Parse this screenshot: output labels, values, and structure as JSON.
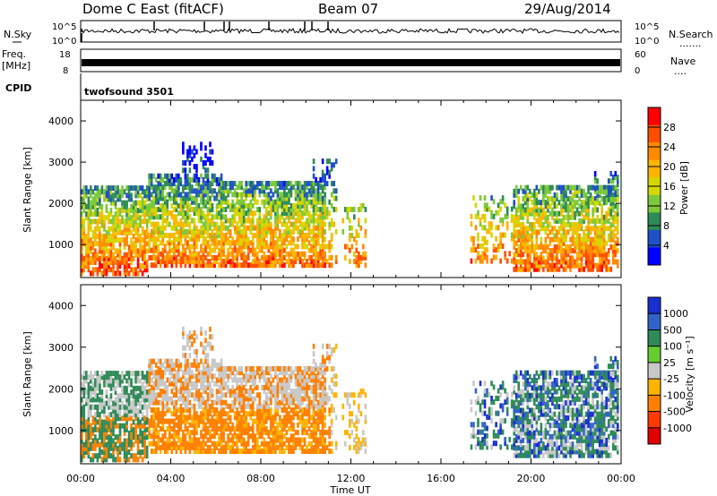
{
  "header": {
    "station": "Dome C East (fitACF)",
    "beam": "Beam 07",
    "date": "29/Aug/2014"
  },
  "noise_panel": {
    "left_label": "N.Sky",
    "right_label": "N.Search",
    "right_dots": ".......",
    "ticks": [
      "10^5",
      "10^0"
    ]
  },
  "freq_panel": {
    "left_label_line1": "Freq.",
    "left_label_line2": "[MHz]",
    "left_ticks": [
      "18",
      "8"
    ],
    "right_ticks": [
      "60",
      "0"
    ],
    "right_label": "Nave",
    "right_dots": "...."
  },
  "cpid": {
    "label": "CPID",
    "value": "twofsound 3501"
  },
  "chart_data": [
    {
      "type": "heatmap",
      "ylabel": "Slant Range [km]",
      "yticks": [
        1000,
        2000,
        3000,
        4000
      ],
      "ylim": [
        200,
        4500
      ],
      "xlim_hours": [
        0,
        24
      ],
      "colorbar": {
        "label": "Power [dB]",
        "ticks": [
          "28",
          "24",
          "20",
          "16",
          "12",
          "8",
          "4"
        ],
        "colors": [
          "#ff0000",
          "#ff4e00",
          "#ff8a00",
          "#ffb400",
          "#d6d600",
          "#7cc83c",
          "#2e8b57",
          "#1e50c8",
          "#0000ff"
        ]
      }
    },
    {
      "type": "heatmap",
      "ylabel": "Slant Range [km]",
      "yticks": [
        1000,
        2000,
        3000,
        4000
      ],
      "ylim": [
        200,
        4500
      ],
      "xlim_hours": [
        0,
        24
      ],
      "colorbar": {
        "label": "Velocity [m s⁻¹]",
        "ticks": [
          "1000",
          "500",
          "100",
          "25",
          "-25",
          "-100",
          "-500",
          "-1000"
        ],
        "colors": [
          "#1a2fd0",
          "#3264c8",
          "#2e8b57",
          "#66cc33",
          "#c8c8c8",
          "#ffb400",
          "#ff8000",
          "#ff3a00",
          "#e00000"
        ]
      }
    }
  ],
  "x_axis": {
    "ticks": [
      "00:00",
      "04:00",
      "08:00",
      "12:00",
      "16:00",
      "20:00",
      "00:00"
    ],
    "label": "Time UT"
  }
}
